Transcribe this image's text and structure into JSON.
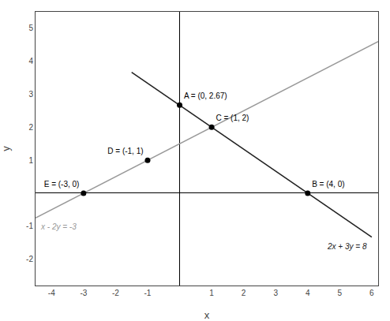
{
  "chart_data": {
    "type": "line",
    "xlabel": "x",
    "ylabel": "y",
    "xlim": [
      -4.5,
      6.2
    ],
    "ylim": [
      -2.8,
      5.5
    ],
    "xticks": [
      -4,
      -3,
      -2,
      -1,
      1,
      2,
      3,
      4,
      5,
      6
    ],
    "yticks": [
      -2,
      -1,
      1,
      2,
      3,
      4,
      5
    ],
    "grid": false,
    "series": [
      {
        "name": "x - 2y = -3",
        "type": "line",
        "color": "#999999",
        "x": [
          -4.5,
          6.2
        ],
        "values": [
          -0.75,
          4.6
        ]
      },
      {
        "name": "2x + 3y = 8",
        "type": "line",
        "color": "#222222",
        "x": [
          -1.5,
          6.0
        ],
        "values": [
          3.6666666666666665,
          -1.3333333333333333
        ]
      },
      {
        "type": "scatter",
        "marker": "circle",
        "color": "#000000",
        "data_labels": true,
        "x": [
          0,
          4,
          1,
          -1,
          -3
        ],
        "values": [
          2.67,
          0,
          2,
          1,
          0
        ],
        "value_labels": [
          "A = (0, 2.67)",
          "B = (4, 0)",
          "C = (1, 2)",
          "D = (-1, 1)",
          "E = (-3, 0)"
        ]
      }
    ]
  }
}
